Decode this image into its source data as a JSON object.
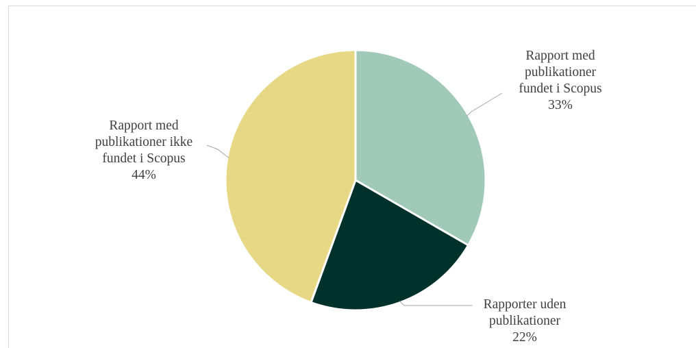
{
  "caption_fragment": "",
  "chart_data": {
    "type": "pie",
    "title": "",
    "slices": [
      {
        "label_lines": [
          "Rapport med",
          "publikationer",
          "fundet i Scopus"
        ],
        "percent_label": "33%",
        "value": 33,
        "color": "#a0cab7"
      },
      {
        "label_lines": [
          "Rapporter uden",
          "publikationer"
        ],
        "percent_label": "22%",
        "value": 22,
        "color": "#00312a"
      },
      {
        "label_lines": [
          "Rapport med",
          "publikationer ikke",
          "fundet i Scopus"
        ],
        "percent_label": "44%",
        "value": 44,
        "color": "#e6d885"
      }
    ],
    "start_angle_deg": 0,
    "direction": "clockwise",
    "slice_border_color": "#ffffff",
    "leader_line_color": "#a6a6a6",
    "legend": "none",
    "data_label_position": "outside-with-leader-lines"
  }
}
